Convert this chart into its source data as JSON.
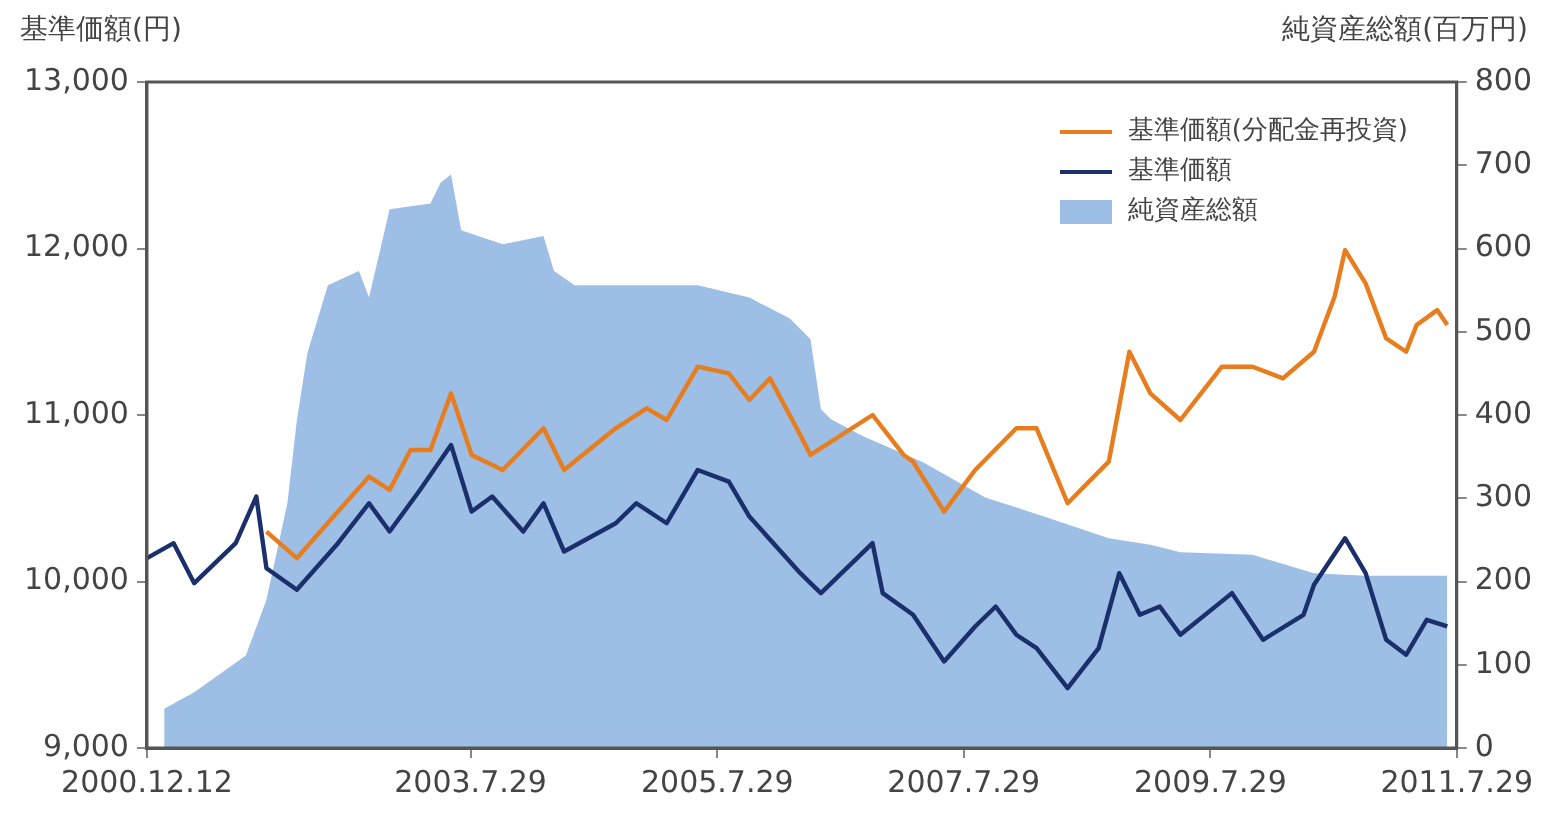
{
  "chart_data": {
    "type": "line",
    "ylabel": "基準価額(円)",
    "y2label": "純資産総額(百万円)",
    "xlim": [
      "2000-12-12",
      "2011-07-29"
    ],
    "xticks": [
      {
        "value": "2000-12-12",
        "label": "2000.12.12"
      },
      {
        "value": "2003-07-29",
        "label": "2003.7.29"
      },
      {
        "value": "2005-07-29",
        "label": "2005.7.29"
      },
      {
        "value": "2007-07-29",
        "label": "2007.7.29"
      },
      {
        "value": "2009-07-29",
        "label": "2009.7.29"
      },
      {
        "value": "2011-07-29",
        "label": "2011.7.29"
      }
    ],
    "ylim": [
      9000,
      13000
    ],
    "yticks": [
      {
        "value": 9000,
        "label": "9,000"
      },
      {
        "value": 10000,
        "label": "10,000"
      },
      {
        "value": 11000,
        "label": "11,000"
      },
      {
        "value": 12000,
        "label": "12,000"
      },
      {
        "value": 13000,
        "label": "13,000"
      }
    ],
    "y2lim": [
      0,
      800
    ],
    "y2ticks": [
      0,
      100,
      200,
      300,
      400,
      500,
      600,
      700,
      800
    ],
    "grid": false,
    "legend": "top right",
    "marker": "none",
    "line_style": "solid",
    "series": [
      {
        "name": "基準価額(分配金再投資)",
        "type": "line",
        "color": "#e87d1e",
        "x": [
          "2001-12",
          "2002-03",
          "2002-07",
          "2002-10",
          "2002-12",
          "2003-02",
          "2003-04",
          "2003-06",
          "2003-08",
          "2003-11",
          "2004-03",
          "2004-05",
          "2004-10",
          "2005-01",
          "2005-03",
          "2005-06",
          "2005-09",
          "2005-11",
          "2006-01",
          "2006-04",
          "2006-05",
          "2006-11",
          "2007-02",
          "2007-03",
          "2007-06",
          "2007-09",
          "2008-01",
          "2008-03",
          "2008-06",
          "2008-10",
          "2008-12",
          "2009-02",
          "2009-05",
          "2009-09",
          "2009-12",
          "2010-03",
          "2010-06",
          "2010-08",
          "2010-09",
          "2010-11",
          "2011-01",
          "2011-03",
          "2011-04",
          "2011-06",
          "2011-07"
        ],
        "values": [
          10300,
          10140,
          10420,
          10630,
          10550,
          10790,
          10790,
          11130,
          10760,
          10670,
          10920,
          10670,
          10920,
          11040,
          10970,
          11290,
          11250,
          11090,
          11220,
          10880,
          10760,
          11000,
          10760,
          10720,
          10420,
          10670,
          10920,
          10920,
          10470,
          10720,
          11380,
          11130,
          10970,
          11290,
          11290,
          11220,
          11380,
          11710,
          11990,
          11790,
          11460,
          11380,
          11540,
          11630,
          11540
        ]
      },
      {
        "name": "基準価額",
        "type": "line",
        "color": "#1a2f6b",
        "x": [
          "2000-12-12",
          "2001-03",
          "2001-05",
          "2001-09",
          "2001-11",
          "2001-12",
          "2002-03",
          "2002-07",
          "2002-10",
          "2002-12",
          "2003-03",
          "2003-06",
          "2003-08",
          "2003-10",
          "2004-01",
          "2004-03",
          "2004-05",
          "2004-10",
          "2004-12",
          "2005-03",
          "2005-06",
          "2005-09",
          "2005-11",
          "2006-04",
          "2006-05",
          "2006-06",
          "2006-11",
          "2006-12",
          "2007-03",
          "2007-06",
          "2007-09",
          "2007-11",
          "2008-01",
          "2008-03",
          "2008-06",
          "2008-09",
          "2008-11",
          "2009-01",
          "2009-03",
          "2009-05",
          "2009-10",
          "2010-01",
          "2010-05",
          "2010-06",
          "2010-09",
          "2010-11",
          "2011-01",
          "2011-03",
          "2011-05",
          "2011-07"
        ],
        "values": [
          10140,
          10230,
          9990,
          10230,
          10510,
          10080,
          9950,
          10230,
          10470,
          10300,
          10550,
          10820,
          10420,
          10510,
          10300,
          10470,
          10180,
          10350,
          10470,
          10350,
          10670,
          10600,
          10390,
          10050,
          9990,
          9930,
          10230,
          9930,
          9800,
          9520,
          9730,
          9850,
          9680,
          9600,
          9360,
          9600,
          10050,
          9800,
          9850,
          9680,
          9930,
          9650,
          9800,
          9980,
          10260,
          10050,
          9650,
          9560,
          9770,
          9730
        ]
      },
      {
        "name": "純資産総額",
        "type": "area",
        "axis": "y2",
        "color": "#9dbfe5",
        "x": [
          "2001-02",
          "2001-05",
          "2001-10",
          "2001-12",
          "2002-02",
          "2002-03",
          "2002-04",
          "2002-06",
          "2002-09",
          "2002-10",
          "2002-12",
          "2003-04",
          "2003-05",
          "2003-06",
          "2003-07",
          "2003-11",
          "2004-03",
          "2004-04",
          "2004-06",
          "2005-01",
          "2005-06",
          "2005-11",
          "2006-03",
          "2006-05",
          "2006-06",
          "2006-07",
          "2006-10",
          "2007-04",
          "2007-10",
          "2008-04",
          "2008-10",
          "2009-02",
          "2009-05",
          "2009-12",
          "2010-06",
          "2010-11",
          "2011-07"
        ],
        "values": [
          47,
          67,
          111,
          178,
          294,
          393,
          474,
          556,
          573,
          541,
          647,
          654,
          679,
          689,
          622,
          605,
          615,
          573,
          556,
          556,
          556,
          541,
          516,
          491,
          407,
          395,
          375,
          343,
          301,
          277,
          252,
          244,
          235,
          232,
          210,
          207,
          207
        ]
      }
    ]
  }
}
